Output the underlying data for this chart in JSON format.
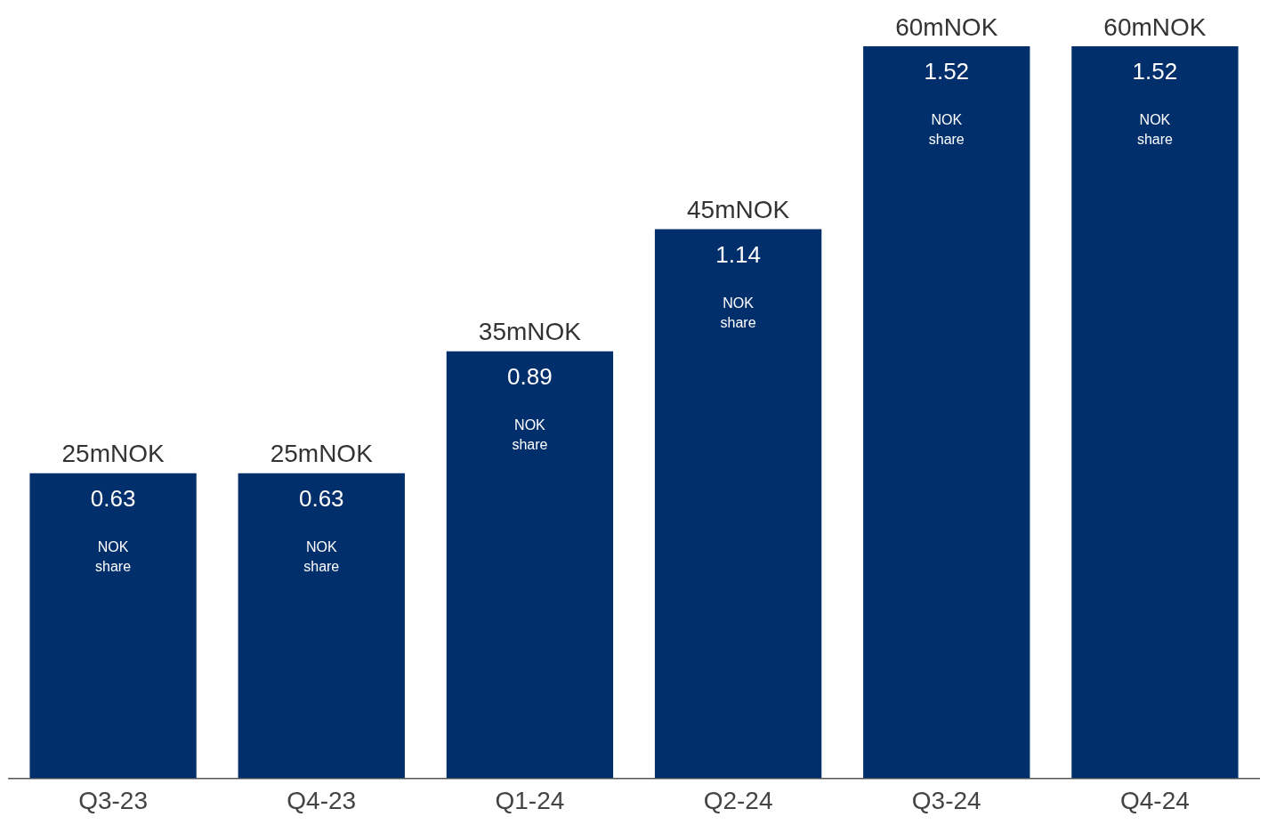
{
  "chart_data": {
    "type": "bar",
    "categories": [
      "Q3-23",
      "Q4-23",
      "Q1-24",
      "Q2-24",
      "Q3-24",
      "Q4-24"
    ],
    "values": [
      25,
      25,
      35,
      45,
      60,
      60
    ],
    "color": "#002f6c",
    "value_labels": [
      "25mNOK",
      "25mNOK",
      "35mNOK",
      "45mNOK",
      "60mNOK",
      "60mNOK"
    ],
    "annotations": [
      "0.63",
      "NOK",
      "share",
      "0.63",
      "NOK",
      "share",
      "0.89",
      "NOK",
      "share",
      "1.14",
      "NOK",
      "share",
      "1.52",
      "NOK",
      "share",
      "1.52",
      "NOK",
      "share"
    ],
    "grid": false,
    "legend": false
  }
}
